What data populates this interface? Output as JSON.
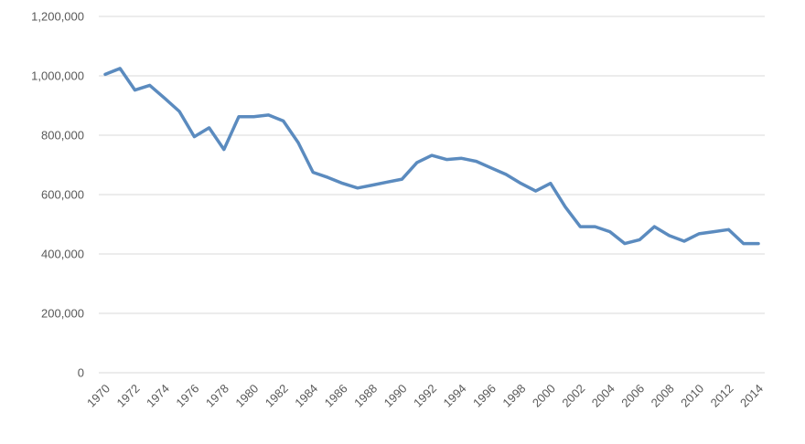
{
  "chart_data": {
    "type": "line",
    "title": "",
    "xlabel": "",
    "ylabel": "",
    "x": [
      1970,
      1971,
      1972,
      1973,
      1974,
      1975,
      1976,
      1977,
      1978,
      1979,
      1980,
      1981,
      1982,
      1983,
      1984,
      1985,
      1986,
      1987,
      1988,
      1989,
      1990,
      1991,
      1992,
      1993,
      1994,
      1995,
      1996,
      1997,
      1998,
      1999,
      2000,
      2001,
      2002,
      2003,
      2004,
      2005,
      2006,
      2007,
      2008,
      2009,
      2010,
      2011,
      2012,
      2013,
      2014
    ],
    "xtick_labels": [
      "1970",
      "1972",
      "1974",
      "1976",
      "1978",
      "1980",
      "1982",
      "1984",
      "1986",
      "1988",
      "1990",
      "1992",
      "1994",
      "1996",
      "1998",
      "2000",
      "2002",
      "2004",
      "2006",
      "2008",
      "2010",
      "2012",
      "2014"
    ],
    "series": [
      {
        "values": [
          1005000,
          1025000,
          952000,
          968000,
          925000,
          880000,
          795000,
          825000,
          752000,
          862000,
          862000,
          868000,
          848000,
          775000,
          675000,
          658000,
          638000,
          622000,
          632000,
          642000,
          652000,
          708000,
          732000,
          718000,
          722000,
          712000,
          690000,
          668000,
          638000,
          612000,
          638000,
          558000,
          492000,
          492000,
          475000,
          435000,
          448000,
          492000,
          462000,
          443000,
          468000,
          475000,
          482000,
          435000,
          435000
        ],
        "color": "#5b8bbf"
      }
    ],
    "ylim": [
      0,
      1200000
    ],
    "yticks": [
      0,
      200000,
      400000,
      600000,
      800000,
      1000000,
      1200000
    ],
    "ytick_labels": [
      "0",
      "200,000",
      "400,000",
      "600,000",
      "800,000",
      "1,000,000",
      "1,200,000"
    ],
    "grid": true,
    "legend": "none"
  }
}
